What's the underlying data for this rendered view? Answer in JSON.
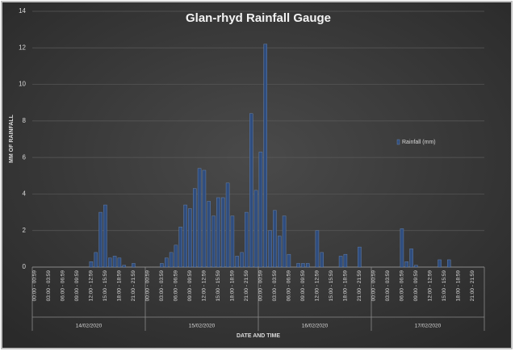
{
  "chart_data": {
    "type": "bar",
    "title": "Glan-rhyd Rainfall Gauge",
    "y_label": "MM OF RAINFALL",
    "x_label": "DATE AND TIME",
    "groups": [
      "14/02/2020",
      "15/02/2020",
      "16/02/2020",
      "17/02/2020"
    ],
    "categories": [
      "00:00 - 00:59",
      null,
      null,
      "03:00 - 03:59",
      null,
      null,
      "06:00 - 06:59",
      null,
      null,
      "09:00 - 09:59",
      null,
      null,
      "12:00 - 12:59",
      null,
      null,
      "15:00 - 15:59",
      null,
      null,
      "18:00 - 18:59",
      null,
      null,
      "21:00 - 21:59",
      null,
      null,
      "00:00 - 00:59",
      null,
      null,
      "03:00 - 03:59",
      null,
      null,
      "06:00 - 06:59",
      null,
      null,
      "09:00 - 09:59",
      null,
      null,
      "12:00 - 12:59",
      null,
      null,
      "15:00 - 15:59",
      null,
      null,
      "18:00 - 18:59",
      null,
      null,
      "21:00 - 21:59",
      null,
      null,
      "00:00 - 00:59",
      null,
      null,
      "03:00 - 03:59",
      null,
      null,
      "06:00 - 06:59",
      null,
      null,
      "09:00 - 09:59",
      null,
      null,
      "12:00 - 12:59",
      null,
      null,
      "15:00 - 15:59",
      null,
      null,
      "18:00 - 18:59",
      null,
      null,
      "21:00 - 21:59",
      null,
      null,
      "00:00 - 00:59",
      null,
      null,
      "03:00 - 03:59",
      null,
      null,
      "06:00 - 06:59",
      null,
      null,
      "09:00 - 09:59",
      null,
      null,
      "12:00 - 12:59",
      null,
      null,
      "15:00 - 15:59",
      null,
      null,
      "18:00 - 18:59",
      null,
      null,
      "21:00 - 21:59",
      null,
      null
    ],
    "series": [
      {
        "name": "Rainfall (mm)",
        "color": "#2f4d7e",
        "values": [
          0,
          0,
          0,
          0,
          0,
          0,
          0,
          0,
          0,
          0,
          0,
          0,
          0.3,
          0.8,
          3.0,
          3.4,
          0.5,
          0.6,
          0.5,
          0.1,
          0,
          0.2,
          0,
          0,
          0,
          0,
          0,
          0.2,
          0.5,
          0.8,
          1.2,
          2.2,
          3.4,
          3.2,
          4.3,
          5.4,
          5.3,
          3.6,
          2.8,
          3.8,
          3.8,
          4.6,
          2.8,
          0.6,
          0.8,
          3.0,
          8.4,
          4.2,
          6.3,
          12.2,
          2.0,
          3.1,
          1.7,
          2.8,
          0.7,
          0,
          0.2,
          0.2,
          0.2,
          0,
          2.0,
          0.8,
          0,
          0,
          0,
          0.6,
          0.7,
          0,
          0,
          1.1,
          0,
          0,
          0,
          0,
          0,
          0,
          0,
          0,
          2.1,
          0.3,
          1.0,
          0.1,
          0,
          0,
          0,
          0,
          0.4,
          0,
          0.4,
          0,
          0,
          0,
          0,
          0,
          0,
          0
        ]
      }
    ],
    "ylim": [
      0,
      14
    ],
    "yticks": [
      0,
      2,
      4,
      6,
      8,
      10,
      12,
      14
    ],
    "grid": true,
    "legend": "right"
  }
}
